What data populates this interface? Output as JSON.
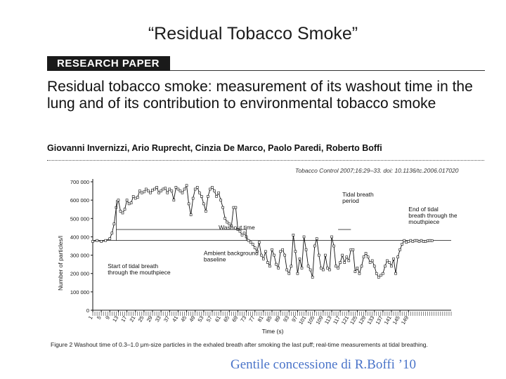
{
  "slide": {
    "title": "“Residual Tobacco Smoke”",
    "credit": "Gentile concessione di R.Boffi ’10"
  },
  "paper": {
    "banner": "RESEARCH PAPER",
    "title": "Residual tobacco smoke: measurement of its washout time in the lung and of its contribution to environmental tobacco smoke",
    "authors": "Giovanni Invernizzi, Ario Ruprecht, Cinzia De Marco, Paolo Paredi, Roberto Boffi",
    "citation": "Tobacco Control 2007;16:29–33. doi: 10.1136/tc.2006.017020",
    "figure_caption": "Figure 2   Washout time of 0.3–1.0 μm-size particles in the exhaled breath after smoking the last puff; real-time measurements at tidal breathing."
  },
  "chart_data": {
    "type": "line",
    "ylabel": "Number of particles/l",
    "xlabel": "Time (s)",
    "ylim": [
      0,
      700000
    ],
    "yticks": [
      "0",
      "100 000",
      "200 000",
      "300 000",
      "400 000",
      "500 000",
      "600 000",
      "700 000"
    ],
    "ytick_values": [
      0,
      100000,
      200000,
      300000,
      400000,
      500000,
      600000,
      700000
    ],
    "xlim": [
      1,
      169
    ],
    "xticks": [
      "1",
      "5",
      "9",
      "13",
      "17",
      "21",
      "25",
      "29",
      "33",
      "37",
      "41",
      "45",
      "49",
      "53",
      "57",
      "61",
      "65",
      "69",
      "73",
      "77",
      "81",
      "85",
      "89",
      "93",
      "97",
      "101",
      "105",
      "109",
      "113",
      "117",
      "121",
      "125",
      "129",
      "133",
      "137",
      "141",
      "145",
      "149"
    ],
    "xtick_values": [
      1,
      5,
      9,
      13,
      17,
      21,
      25,
      29,
      33,
      37,
      41,
      45,
      49,
      53,
      57,
      61,
      65,
      69,
      73,
      77,
      81,
      85,
      89,
      93,
      97,
      101,
      105,
      109,
      113,
      117,
      121,
      125,
      129,
      133,
      137,
      141,
      145,
      149
    ],
    "baseline": 380000,
    "series": [
      {
        "x": [
          1,
          3,
          5,
          7,
          9,
          10,
          11,
          12,
          13,
          14,
          15,
          16,
          17,
          18,
          19,
          20,
          21,
          22,
          23,
          24,
          25,
          26,
          27,
          28,
          29,
          30,
          31,
          32,
          33,
          34,
          35,
          36,
          37,
          38,
          39,
          40,
          41,
          42,
          43,
          44,
          45,
          46,
          47,
          48,
          49,
          50,
          51,
          52,
          53,
          54,
          55,
          56,
          57,
          58,
          59,
          60,
          61,
          62,
          63,
          64,
          65,
          66,
          67,
          68,
          69,
          70,
          71,
          72,
          73,
          74,
          75,
          76,
          77,
          78,
          79,
          80,
          81,
          82,
          83,
          84,
          85,
          86,
          87,
          88,
          89,
          90,
          91,
          92,
          93,
          94,
          95,
          96,
          97,
          98,
          99,
          100,
          101,
          102,
          103,
          104,
          105,
          106,
          107,
          108,
          109,
          110,
          111,
          112,
          113,
          114,
          115,
          116,
          117,
          118,
          119,
          120,
          121,
          122,
          123,
          124,
          125,
          126,
          127,
          128,
          129,
          130,
          131,
          132,
          133,
          134,
          135,
          136,
          137,
          138,
          139,
          140,
          141,
          142,
          143,
          144,
          145,
          146,
          147,
          148,
          149,
          150,
          151,
          152,
          153,
          154,
          155,
          156,
          157,
          158,
          159,
          160
        ],
        "y": [
          375000,
          380000,
          375000,
          380000,
          390000,
          420000,
          470000,
          560000,
          600000,
          540000,
          530000,
          550000,
          600000,
          580000,
          585000,
          620000,
          610000,
          615000,
          650000,
          640000,
          645000,
          660000,
          650000,
          640000,
          655000,
          660000,
          670000,
          640000,
          650000,
          660000,
          665000,
          640000,
          660000,
          650000,
          600000,
          670000,
          660000,
          650000,
          640000,
          660000,
          680000,
          580000,
          520000,
          610000,
          660000,
          670000,
          640000,
          620000,
          580000,
          540000,
          620000,
          660000,
          670000,
          650000,
          620000,
          640000,
          600000,
          560000,
          500000,
          480000,
          470000,
          460000,
          560000,
          560000,
          440000,
          430000,
          410000,
          420000,
          400000,
          380000,
          370000,
          360000,
          340000,
          320000,
          370000,
          300000,
          280000,
          320000,
          260000,
          240000,
          330000,
          300000,
          250000,
          230000,
          320000,
          330000,
          300000,
          220000,
          200000,
          240000,
          410000,
          320000,
          200000,
          280000,
          230000,
          400000,
          330000,
          240000,
          220000,
          180000,
          350000,
          390000,
          300000,
          230000,
          220000,
          300000,
          230000,
          220000,
          400000,
          350000,
          240000,
          230000,
          260000,
          300000,
          260000,
          290000,
          270000,
          330000,
          330000,
          210000,
          230000,
          200000,
          240000,
          290000,
          310000,
          290000,
          260000,
          270000,
          240000,
          200000,
          180000,
          190000,
          200000,
          240000,
          270000,
          260000,
          240000,
          280000,
          200000,
          290000,
          330000,
          360000,
          380000,
          370000,
          375000,
          380000,
          375000,
          380000,
          380000,
          375000,
          380000,
          375000,
          375000,
          378000,
          380000,
          379000
        ]
      }
    ],
    "annotations": [
      {
        "text": "Washout time",
        "x": 60,
        "y": 440000
      },
      {
        "text": "Tidal breath period",
        "x": 118,
        "y": 620000
      },
      {
        "text": "End of tidal breath through the mouthpiece",
        "x": 149,
        "y": 540000
      },
      {
        "text": "Ambient background baseline",
        "x": 53,
        "y": 300000
      },
      {
        "text": "Start of tidal breath through the mouthpiece",
        "x": 8,
        "y": 230000
      }
    ]
  }
}
